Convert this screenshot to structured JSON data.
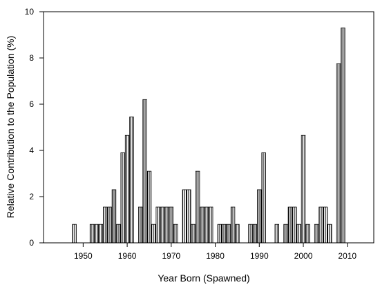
{
  "chart_data": {
    "type": "bar",
    "title": "",
    "xlabel": "Year Born (Spawned)",
    "ylabel": "Relative Contribution to the Population (%)",
    "xlim": [
      1941,
      2016
    ],
    "ylim": [
      0,
      10
    ],
    "xticks": [
      1950,
      1960,
      1970,
      1980,
      1990,
      2000,
      2010
    ],
    "yticks": [
      0,
      2,
      4,
      6,
      8,
      10
    ],
    "grid": false,
    "legend": "none",
    "bar_fill": "#ffffff",
    "bar_hatch": "#000000",
    "x": [
      1948,
      1952,
      1953,
      1954,
      1955,
      1956,
      1957,
      1958,
      1959,
      1960,
      1961,
      1963,
      1964,
      1965,
      1966,
      1967,
      1968,
      1969,
      1970,
      1971,
      1973,
      1974,
      1975,
      1976,
      1977,
      1978,
      1979,
      1981,
      1982,
      1983,
      1984,
      1985,
      1988,
      1989,
      1990,
      1991,
      1994,
      1996,
      1997,
      1998,
      1999,
      2000,
      2001,
      2003,
      2004,
      2005,
      2006,
      2008,
      2009
    ],
    "values": [
      0.8,
      0.8,
      0.8,
      0.8,
      1.55,
      1.55,
      2.3,
      0.8,
      3.9,
      4.65,
      5.45,
      1.55,
      6.2,
      3.1,
      0.8,
      1.55,
      1.55,
      1.55,
      1.55,
      0.8,
      2.3,
      2.3,
      0.8,
      3.1,
      1.55,
      1.55,
      1.55,
      0.8,
      0.8,
      0.8,
      1.55,
      0.8,
      0.8,
      0.8,
      2.3,
      3.9,
      0.8,
      0.8,
      1.55,
      1.55,
      0.8,
      4.65,
      0.8,
      0.8,
      1.55,
      1.55,
      0.8,
      7.75,
      9.3
    ]
  }
}
